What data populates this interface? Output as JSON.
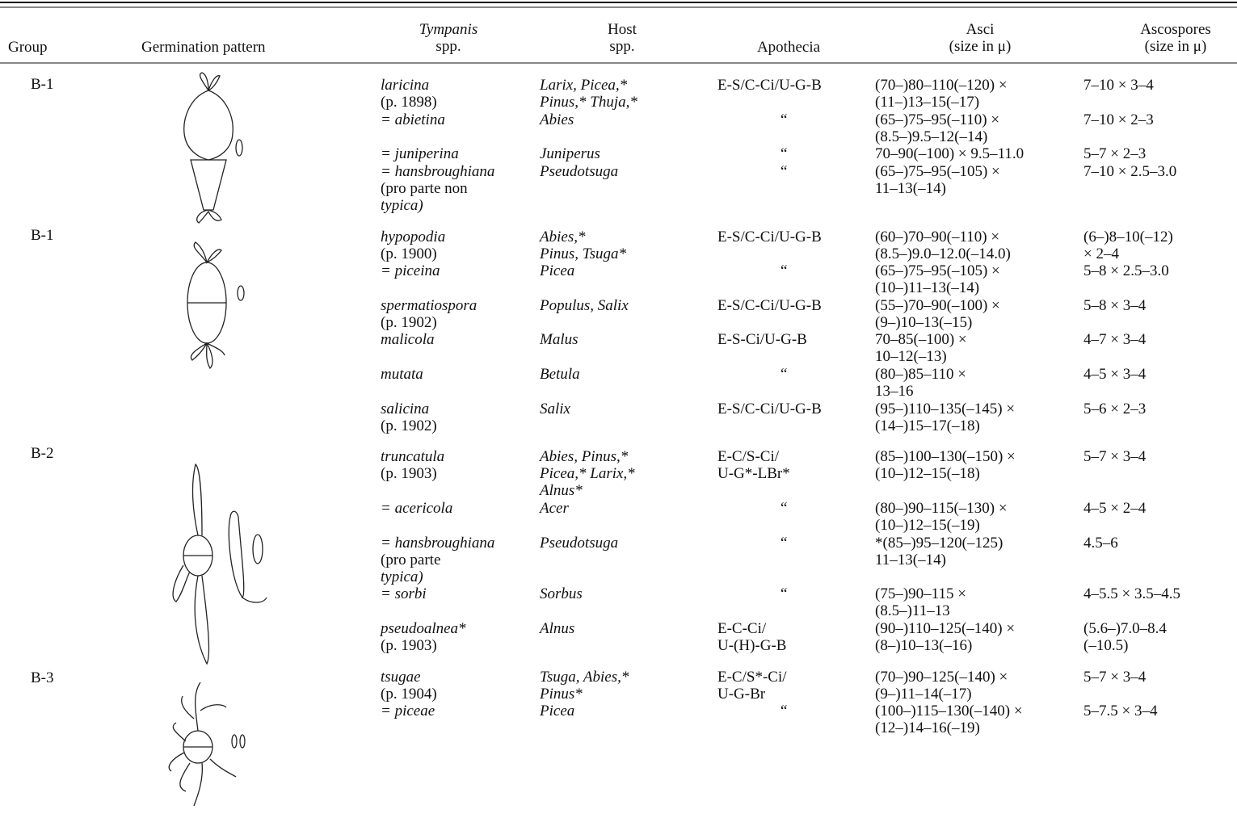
{
  "header": {
    "group": "Group",
    "pattern": "Germination pattern",
    "species": [
      "Tympanis",
      "spp."
    ],
    "host": [
      "Host",
      "spp."
    ],
    "apothecia": "Apothecia",
    "asci": [
      "Asci",
      "(size in μ)"
    ],
    "ascospores": [
      "Ascospores",
      "(size in μ)"
    ]
  },
  "groups": [
    {
      "group": "B-1",
      "rows": [
        {
          "species": [
            "laricina",
            "(p. 1898)"
          ],
          "host": [
            "Larix, Picea,*",
            "Pinus,* Thuja,*"
          ],
          "apothecia": [
            "E-S/C-Ci/U-G-B"
          ],
          "asci": [
            "(70–)80–110(–120) ×",
            "(11–)13–15(–17)"
          ],
          "ascospores": [
            "7–10 × 3–4"
          ]
        },
        {
          "species": [
            "= abietina"
          ],
          "host": [
            "Abies"
          ],
          "apothecia": [
            "“"
          ],
          "asci": [
            "(65–)75–95(–110) ×",
            "(8.5–)9.5–12(–14)"
          ],
          "ascospores": [
            "7–10 × 2–3"
          ]
        },
        {
          "species": [
            "= juniperina"
          ],
          "host": [
            "Juniperus"
          ],
          "apothecia": [
            "“"
          ],
          "asci": [
            "70–90(–100) × 9.5–11.0"
          ],
          "ascospores": [
            "5–7 × 2–3"
          ]
        },
        {
          "species": [
            "= hansbroughiana",
            "(pro parte non",
            "typica)"
          ],
          "host": [
            "Pseudotsuga"
          ],
          "apothecia": [
            "“"
          ],
          "asci": [
            "(65–)75–95(–105) ×",
            "11–13(–14)"
          ],
          "ascospores": [
            "7–10 × 2.5–3.0"
          ]
        }
      ]
    },
    {
      "group": "B-1",
      "rows": [
        {
          "species": [
            "hypopodia",
            "(p. 1900)"
          ],
          "host": [
            "Abies,*",
            "Pinus, Tsuga*"
          ],
          "apothecia": [
            "E-S/C-Ci/U-G-B"
          ],
          "asci": [
            "(60–)70–90(–110) ×",
            "(8.5–)9.0–12.0(–14.0)"
          ],
          "ascospores": [
            "(6–)8–10(–12)",
            "× 2–4"
          ]
        },
        {
          "species": [
            "= piceina"
          ],
          "host": [
            "Picea"
          ],
          "apothecia": [
            "“"
          ],
          "asci": [
            "(65–)75–95(–105) ×",
            "(10–)11–13(–14)"
          ],
          "ascospores": [
            "5–8 × 2.5–3.0"
          ]
        },
        {
          "species": [
            "spermatiospora",
            "(p. 1902)"
          ],
          "host": [
            "Populus, Salix"
          ],
          "apothecia": [
            "E-S/C-Ci/U-G-B"
          ],
          "asci": [
            "(55–)70–90(–100) ×",
            "(9–)10–13(–15)"
          ],
          "ascospores": [
            "5–8 × 3–4"
          ]
        },
        {
          "species": [
            "malicola"
          ],
          "host": [
            "Malus"
          ],
          "apothecia": [
            "E-S-Ci/U-G-B"
          ],
          "asci": [
            "70–85(–100) ×",
            "10–12(–13)"
          ],
          "ascospores": [
            "4–7 × 3–4"
          ]
        },
        {
          "species": [
            "mutata"
          ],
          "host": [
            "Betula"
          ],
          "apothecia": [
            "“"
          ],
          "asci": [
            "(80–)85–110 ×",
            "13–16"
          ],
          "ascospores": [
            "4–5 × 3–4"
          ]
        },
        {
          "species": [
            "salicina",
            "(p. 1902)"
          ],
          "host": [
            "Salix"
          ],
          "apothecia": [
            "E-S/C-Ci/U-G-B"
          ],
          "asci": [
            "(95–)110–135(–145) ×",
            "(14–)15–17(–18)"
          ],
          "ascospores": [
            "5–6 × 2–3"
          ]
        }
      ]
    },
    {
      "group": "B-2",
      "rows": [
        {
          "species": [
            "truncatula",
            "(p. 1903)"
          ],
          "host": [
            "Abies, Pinus,*",
            "Picea,* Larix,*",
            "Alnus*"
          ],
          "apothecia": [
            "E-C/S-Ci/",
            "U-G*-LBr*"
          ],
          "asci": [
            "(85–)100–130(–150) ×",
            "(10–)12–15(–18)"
          ],
          "ascospores": [
            "5–7 × 3–4"
          ]
        },
        {
          "species": [
            "= acericola"
          ],
          "host": [
            "Acer"
          ],
          "apothecia": [
            "“"
          ],
          "asci": [
            "(80–)90–115(–130) ×",
            "(10–)12–15(–19)"
          ],
          "ascospores": [
            "4–5 × 2–4"
          ]
        },
        {
          "species": [
            "= hansbroughiana",
            "(pro parte",
            "typica)"
          ],
          "host": [
            "Pseudotsuga"
          ],
          "apothecia": [
            "“"
          ],
          "asci": [
            "*(85–)95–120(–125)",
            "11–13(–14)"
          ],
          "ascospores": [
            "4.5–6"
          ]
        },
        {
          "species": [
            "= sorbi"
          ],
          "host": [
            "Sorbus"
          ],
          "apothecia": [
            "“"
          ],
          "asci": [
            "(75–)90–115 ×",
            "(8.5–)11–13"
          ],
          "ascospores": [
            "4–5.5 × 3.5–4.5"
          ]
        },
        {
          "species": [
            "pseudoalnea*",
            "(p. 1903)"
          ],
          "host": [
            "Alnus"
          ],
          "apothecia": [
            "E-C-Ci/",
            "U-(H)-G-B"
          ],
          "asci": [
            "(90–)110–125(–140) ×",
            "(8–)10–13(–16)"
          ],
          "ascospores": [
            "(5.6–)7.0–8.4",
            "(–10.5)"
          ]
        }
      ]
    },
    {
      "group": "B-3",
      "rows": [
        {
          "species": [
            "tsugae",
            "(p. 1904)"
          ],
          "host": [
            "Tsuga, Abies,*",
            "Pinus*"
          ],
          "apothecia": [
            "E-C/S*-Ci/",
            "U-G-Br"
          ],
          "asci": [
            "(70–)90–125(–140) ×",
            "(9–)11–14(–17)"
          ],
          "ascospores": [
            "5–7 × 3–4"
          ]
        },
        {
          "species": [
            "= piceae"
          ],
          "host": [
            "Picea"
          ],
          "apothecia": [
            "“"
          ],
          "asci": [
            "(100–)115–130(–140) ×",
            "(12–)14–16(–19)"
          ],
          "ascospores": [
            "5–7.5 × 3–4"
          ]
        }
      ]
    }
  ]
}
